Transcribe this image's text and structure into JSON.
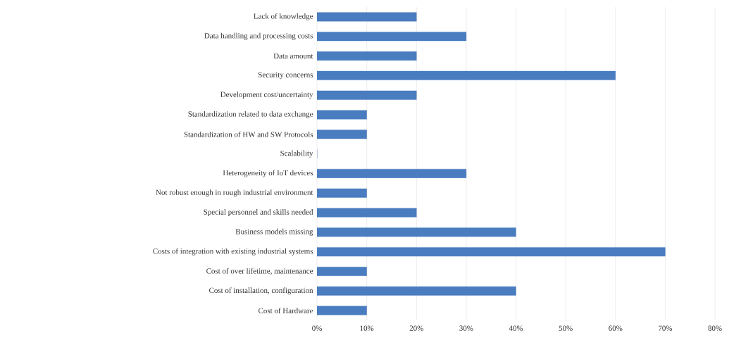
{
  "chart_data": {
    "type": "bar",
    "orientation": "horizontal",
    "categories": [
      "Lack of knowledge",
      "Data handling and processing costs",
      "Data amount",
      "Security concerns",
      "Development cost/uncertainty",
      "Standardization related to data exchange",
      "Standardization of HW and SW Protocols",
      "Scalability",
      "Heterogeneity of IoT devices",
      "Not robust enough in rough industrial environment",
      "Special personnel and skills needed",
      "Business models missing",
      "Costs of integration with existing industrial systems",
      "Cost of over lifetime, maintenance",
      "Cost of installation, configuration",
      "Cost of Hardware"
    ],
    "values": [
      20,
      30,
      20,
      60,
      20,
      10,
      10,
      0,
      30,
      10,
      20,
      40,
      70,
      10,
      40,
      10
    ],
    "color": "#4a7cc0",
    "xlim": [
      0,
      80
    ],
    "xticks": [
      {
        "value": 0,
        "label": "0%"
      },
      {
        "value": 10,
        "label": "10%"
      },
      {
        "value": 20,
        "label": "20%"
      },
      {
        "value": 30,
        "label": "30%"
      },
      {
        "value": 40,
        "label": "40%"
      },
      {
        "value": 50,
        "label": "50%"
      },
      {
        "value": 60,
        "label": "60%"
      },
      {
        "value": 70,
        "label": "70%"
      },
      {
        "value": 80,
        "label": "80%"
      }
    ],
    "grid": "x"
  }
}
